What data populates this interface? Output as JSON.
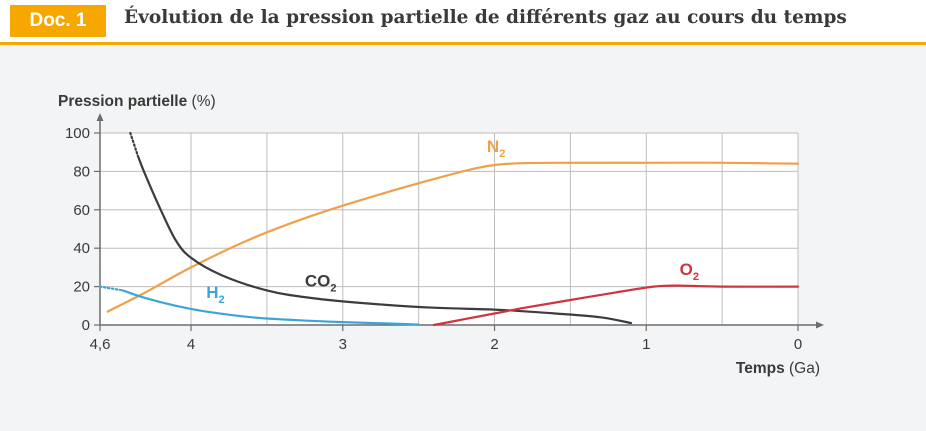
{
  "header": {
    "badge": "Doc. 1",
    "title": "Évolution de la pression partielle de différents gaz au cours du temps"
  },
  "colors": {
    "accent": "#f6a800",
    "N2": "#f0a04b",
    "CO2": "#3c3c3c",
    "O2": "#d0343f",
    "H2": "#3ba6d6",
    "grid": "#bdbdbd"
  },
  "chart_data": {
    "type": "line",
    "title": "",
    "ylabel_bold": "Pression partielle",
    "ylabel_unit": "(%)",
    "xlabel_bold": "Temps",
    "xlabel_unit": "(Ga)",
    "x_reversed": true,
    "xlim": [
      4.6,
      0
    ],
    "ylim": [
      0,
      100
    ],
    "x_ticks": [
      {
        "value": 4.6,
        "label": "4,6"
      },
      {
        "value": 4,
        "label": "4"
      },
      {
        "value": 3,
        "label": "3"
      },
      {
        "value": 2,
        "label": "2"
      },
      {
        "value": 1,
        "label": "1"
      },
      {
        "value": 0,
        "label": "0"
      }
    ],
    "x_grid": [
      4.6,
      4,
      3.5,
      3,
      2.5,
      2,
      1.5,
      1,
      0.5,
      0
    ],
    "y_ticks": [
      0,
      20,
      40,
      60,
      80,
      100
    ],
    "grid": true,
    "series": [
      {
        "id": "N2",
        "name": "N",
        "sub": "2",
        "color": "#f0a04b",
        "points": [
          [
            4.55,
            7
          ],
          [
            4.3,
            17
          ],
          [
            4.0,
            30
          ],
          [
            3.6,
            45
          ],
          [
            3.2,
            57
          ],
          [
            2.8,
            67
          ],
          [
            2.4,
            76
          ],
          [
            2.1,
            82
          ],
          [
            1.9,
            84
          ],
          [
            1.6,
            84.5
          ],
          [
            1.0,
            84.5
          ],
          [
            0.5,
            84.5
          ],
          [
            0,
            84
          ]
        ],
        "label_at": [
          2.05,
          90
        ]
      },
      {
        "id": "CO2",
        "name": "CO",
        "sub": "2",
        "color": "#3c3c3c",
        "dotted": [
          [
            4.4,
            100
          ],
          [
            4.35,
            88
          ]
        ],
        "points": [
          [
            4.35,
            88
          ],
          [
            4.3,
            78
          ],
          [
            4.2,
            60
          ],
          [
            4.1,
            44
          ],
          [
            4.0,
            35
          ],
          [
            3.8,
            26
          ],
          [
            3.5,
            18
          ],
          [
            3.2,
            14
          ],
          [
            2.8,
            11
          ],
          [
            2.4,
            9
          ],
          [
            2.0,
            8
          ],
          [
            1.6,
            6
          ],
          [
            1.3,
            4
          ],
          [
            1.1,
            1
          ]
        ],
        "label_at": [
          3.25,
          20
        ]
      },
      {
        "id": "H2",
        "name": "H",
        "sub": "2",
        "color": "#3ba6d6",
        "dotted": [
          [
            4.6,
            20
          ],
          [
            4.45,
            18
          ]
        ],
        "points": [
          [
            4.45,
            18
          ],
          [
            4.3,
            14
          ],
          [
            4.1,
            10
          ],
          [
            3.9,
            7
          ],
          [
            3.6,
            4
          ],
          [
            3.3,
            2.5
          ],
          [
            3.0,
            1.5
          ],
          [
            2.7,
            0.8
          ],
          [
            2.5,
            0.2
          ]
        ],
        "label_at": [
          3.9,
          14
        ]
      },
      {
        "id": "O2",
        "name": "O",
        "sub": "2",
        "color": "#d0343f",
        "points": [
          [
            2.4,
            0
          ],
          [
            2.2,
            3
          ],
          [
            2.0,
            6
          ],
          [
            1.8,
            9
          ],
          [
            1.5,
            13
          ],
          [
            1.2,
            17
          ],
          [
            0.95,
            20
          ],
          [
            0.8,
            20.5
          ],
          [
            0.5,
            20
          ],
          [
            0,
            20
          ]
        ],
        "label_at": [
          0.78,
          26
        ]
      }
    ]
  }
}
